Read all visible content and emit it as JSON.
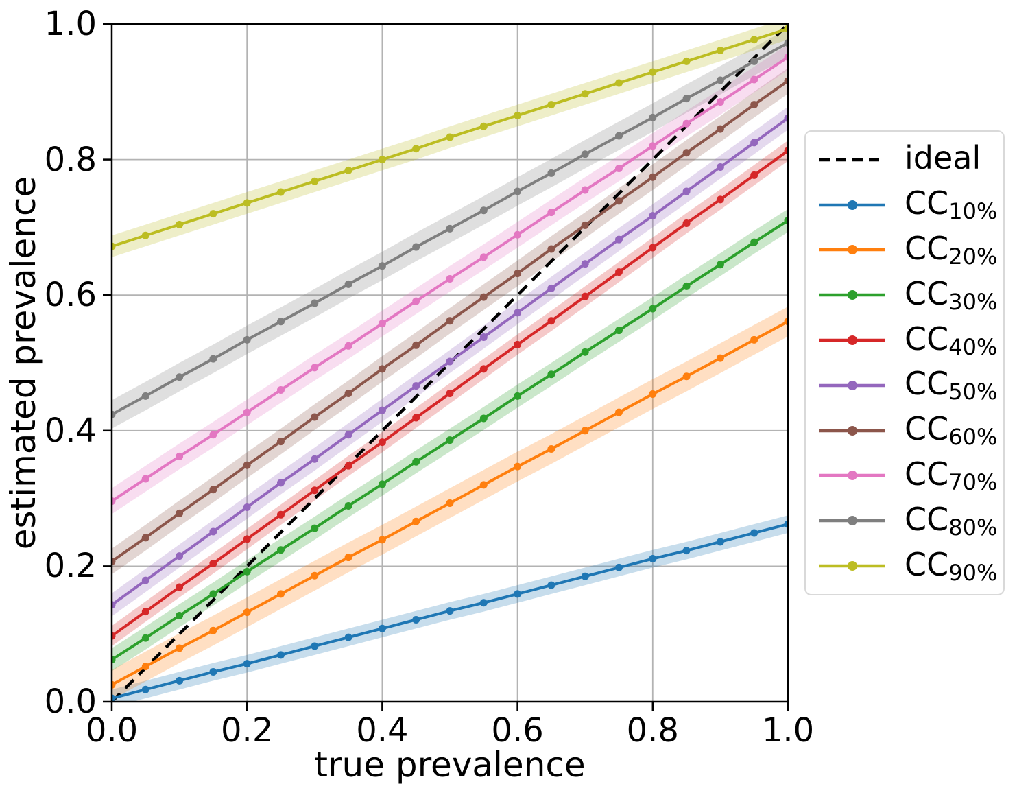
{
  "chart_data": {
    "type": "line",
    "title": "",
    "xlabel": "true prevalence",
    "ylabel": "estimated prevalence",
    "xlim": [
      0.0,
      1.0
    ],
    "ylim": [
      0.0,
      1.0
    ],
    "grid": true,
    "legend_position": "outside-right",
    "x_tick_labels": [
      "0.0",
      "0.2",
      "0.4",
      "0.6",
      "0.8",
      "1.0"
    ],
    "y_tick_labels": [
      "0.0",
      "0.2",
      "0.4",
      "0.6",
      "0.8",
      "1.0"
    ],
    "x_tick_values": [
      0.0,
      0.2,
      0.4,
      0.6,
      0.8,
      1.0
    ],
    "y_tick_values": [
      0.0,
      0.2,
      0.4,
      0.6,
      0.8,
      1.0
    ],
    "x": [
      0.0,
      0.05,
      0.1,
      0.15,
      0.2,
      0.25,
      0.3,
      0.35,
      0.4,
      0.45,
      0.5,
      0.55,
      0.6,
      0.65,
      0.7,
      0.75,
      0.8,
      0.85,
      0.9,
      0.95,
      1.0
    ],
    "reference_line": {
      "label": "ideal",
      "style": "dashed",
      "color": "#000000",
      "from": [
        0.0,
        0.0
      ],
      "to": [
        1.0,
        1.0
      ]
    },
    "series": [
      {
        "label_base": "CC",
        "label_sub": "10%",
        "color": "#1f77b4",
        "band_halfwidth": 0.013,
        "values": [
          0.005,
          0.018,
          0.031,
          0.044,
          0.056,
          0.069,
          0.082,
          0.095,
          0.108,
          0.121,
          0.134,
          0.146,
          0.159,
          0.172,
          0.185,
          0.198,
          0.211,
          0.223,
          0.236,
          0.249,
          0.262
        ]
      },
      {
        "label_base": "CC",
        "label_sub": "20%",
        "color": "#ff7f0e",
        "band_halfwidth": 0.022,
        "values": [
          0.025,
          0.052,
          0.079,
          0.105,
          0.132,
          0.159,
          0.186,
          0.213,
          0.239,
          0.266,
          0.293,
          0.32,
          0.347,
          0.373,
          0.4,
          0.427,
          0.454,
          0.48,
          0.507,
          0.534,
          0.561
        ]
      },
      {
        "label_base": "CC",
        "label_sub": "30%",
        "color": "#2ca02c",
        "band_halfwidth": 0.017,
        "values": [
          0.062,
          0.094,
          0.127,
          0.159,
          0.192,
          0.224,
          0.256,
          0.289,
          0.321,
          0.354,
          0.386,
          0.418,
          0.451,
          0.483,
          0.516,
          0.548,
          0.58,
          0.613,
          0.645,
          0.678,
          0.71
        ]
      },
      {
        "label_base": "CC",
        "label_sub": "40%",
        "color": "#d62728",
        "band_halfwidth": 0.015,
        "values": [
          0.097,
          0.133,
          0.169,
          0.204,
          0.24,
          0.276,
          0.312,
          0.348,
          0.383,
          0.419,
          0.455,
          0.491,
          0.527,
          0.562,
          0.598,
          0.634,
          0.67,
          0.706,
          0.741,
          0.777,
          0.813
        ]
      },
      {
        "label_base": "CC",
        "label_sub": "50%",
        "color": "#9467bd",
        "band_halfwidth": 0.017,
        "values": [
          0.143,
          0.179,
          0.215,
          0.251,
          0.287,
          0.323,
          0.358,
          0.394,
          0.43,
          0.466,
          0.502,
          0.538,
          0.574,
          0.61,
          0.646,
          0.682,
          0.717,
          0.753,
          0.789,
          0.825,
          0.861
        ]
      },
      {
        "label_base": "CC",
        "label_sub": "60%",
        "color": "#8c564b",
        "band_halfwidth": 0.019,
        "values": [
          0.207,
          0.242,
          0.278,
          0.313,
          0.349,
          0.384,
          0.42,
          0.455,
          0.491,
          0.526,
          0.562,
          0.597,
          0.632,
          0.668,
          0.703,
          0.739,
          0.774,
          0.81,
          0.845,
          0.881,
          0.916
        ]
      },
      {
        "label_base": "CC",
        "label_sub": "70%",
        "color": "#e377c2",
        "band_halfwidth": 0.019,
        "values": [
          0.296,
          0.329,
          0.362,
          0.394,
          0.427,
          0.46,
          0.493,
          0.525,
          0.558,
          0.591,
          0.624,
          0.656,
          0.689,
          0.722,
          0.755,
          0.787,
          0.82,
          0.853,
          0.885,
          0.918,
          0.951
        ]
      },
      {
        "label_base": "CC",
        "label_sub": "80%",
        "color": "#7f7f7f",
        "band_halfwidth": 0.021,
        "values": [
          0.424,
          0.451,
          0.479,
          0.506,
          0.534,
          0.561,
          0.588,
          0.616,
          0.643,
          0.671,
          0.698,
          0.725,
          0.753,
          0.78,
          0.808,
          0.835,
          0.862,
          0.89,
          0.917,
          0.945,
          0.972
        ]
      },
      {
        "label_base": "CC",
        "label_sub": "90%",
        "color": "#bcbd22",
        "band_halfwidth": 0.016,
        "values": [
          0.672,
          0.688,
          0.704,
          0.72,
          0.736,
          0.752,
          0.768,
          0.784,
          0.8,
          0.816,
          0.833,
          0.849,
          0.865,
          0.881,
          0.897,
          0.913,
          0.929,
          0.945,
          0.961,
          0.977,
          0.993
        ]
      }
    ],
    "style": {
      "grid_color": "#b3b3b3",
      "spine_color": "#000000",
      "band_opacity": 0.25,
      "background": "#ffffff",
      "legend_border_color": "#d9d9d9"
    }
  }
}
